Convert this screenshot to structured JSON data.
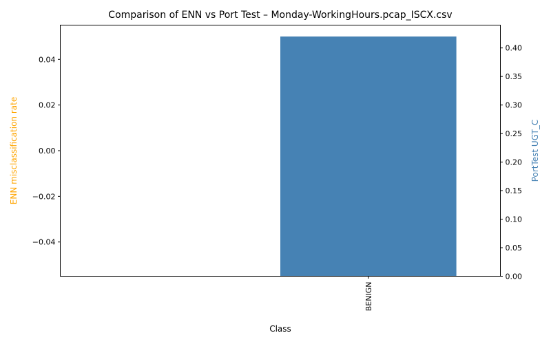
{
  "chart_data": {
    "type": "bar",
    "title": "Comparison of ENN vs Port Test – Monday-WorkingHours.pcap_ISCX.csv",
    "xlabel": "Class",
    "categories": [
      "BENIGN"
    ],
    "left_axis": {
      "label": "ENN misclassification rate",
      "color": "#ffa500",
      "ylim": [
        -0.055,
        0.055
      ],
      "ticks": [
        -0.04,
        -0.02,
        0.0,
        0.02,
        0.04
      ],
      "tick_labels": [
        "−0.04",
        "−0.02",
        "0.00",
        "0.02",
        "0.04"
      ]
    },
    "right_axis": {
      "label": "PortTest UGT_C",
      "color": "#4682b4",
      "ylim": [
        0,
        0.44
      ],
      "ticks": [
        0,
        0.05,
        0.1,
        0.15,
        0.2,
        0.25,
        0.3,
        0.35,
        0.4
      ],
      "tick_labels": [
        "0.00",
        "0.05",
        "0.10",
        "0.15",
        "0.20",
        "0.25",
        "0.30",
        "0.35",
        "0.40"
      ]
    },
    "series": [
      {
        "name": "ENN misclassification rate",
        "axis": "left",
        "color": "#ffa500",
        "values": [
          0
        ]
      },
      {
        "name": "PortTest UGT_C",
        "axis": "right",
        "color": "#4682b4",
        "values": [
          0.42
        ]
      }
    ]
  }
}
